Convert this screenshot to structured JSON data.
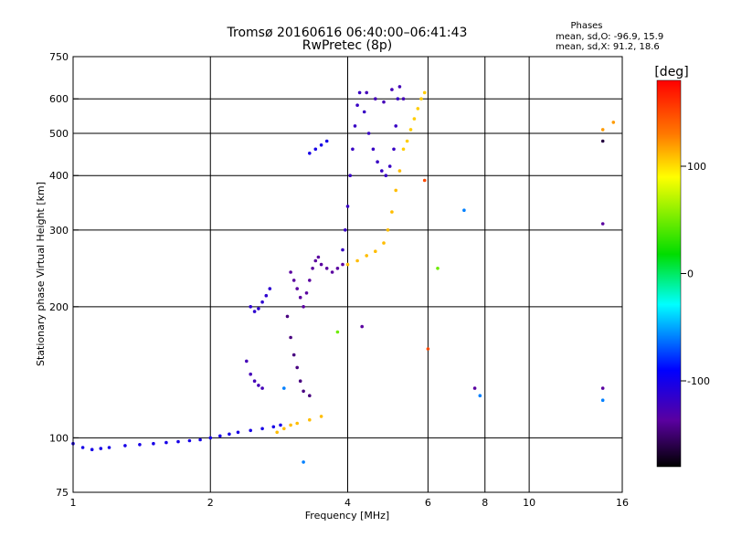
{
  "chart_data": {
    "type": "scatter",
    "title": "Tromsø 20160616 06:40:00–06:41:43",
    "subtitle": "RwPretec (8p)",
    "stats": {
      "heading": "Phases",
      "line_o": "mean, sd,O: -96.9, 15.9",
      "line_x": "mean, sd,X:  91.2, 18.6"
    },
    "xlabel": "Frequency [MHz]",
    "ylabel": "Stationary phase Virtual Height [km]",
    "x_scale": "log",
    "y_scale": "log",
    "xlim": [
      1,
      16
    ],
    "ylim": [
      75,
      750
    ],
    "x_ticks": [
      1,
      2,
      4,
      6,
      8,
      10,
      16
    ],
    "y_ticks": [
      75,
      100,
      200,
      300,
      400,
      500,
      600,
      750
    ],
    "x_grid": [
      2,
      4,
      6,
      8,
      10
    ],
    "y_grid": [
      100,
      200,
      300,
      400,
      500,
      600
    ],
    "colorbar": {
      "label": "[deg]",
      "range": [
        -180,
        180
      ],
      "ticks": [
        100,
        0,
        -100
      ]
    },
    "series": [
      {
        "phase": -100,
        "points": [
          [
            1.0,
            97
          ],
          [
            1.05,
            95
          ],
          [
            1.1,
            94
          ],
          [
            1.15,
            94.5
          ],
          [
            1.2,
            95
          ],
          [
            1.3,
            96
          ],
          [
            1.4,
            96.5
          ],
          [
            1.5,
            97
          ],
          [
            1.6,
            97.5
          ],
          [
            1.7,
            98
          ],
          [
            1.8,
            98.5
          ],
          [
            1.9,
            99
          ],
          [
            2.0,
            100
          ],
          [
            2.1,
            101
          ],
          [
            2.2,
            102
          ],
          [
            2.3,
            103
          ],
          [
            2.45,
            104
          ],
          [
            2.6,
            105
          ],
          [
            2.75,
            106
          ],
          [
            2.85,
            107
          ]
        ]
      },
      {
        "phase": -110,
        "points": [
          [
            2.45,
            200
          ],
          [
            2.5,
            195
          ],
          [
            2.55,
            198
          ],
          [
            2.6,
            205
          ],
          [
            2.65,
            212
          ],
          [
            2.7,
            220
          ]
        ]
      },
      {
        "phase": -120,
        "points": [
          [
            2.4,
            150
          ],
          [
            2.45,
            140
          ],
          [
            2.5,
            135
          ],
          [
            2.55,
            132
          ],
          [
            2.6,
            130
          ]
        ]
      },
      {
        "phase": -140,
        "points": [
          [
            2.95,
            190
          ],
          [
            3.0,
            170
          ],
          [
            3.05,
            155
          ],
          [
            3.1,
            145
          ],
          [
            3.15,
            135
          ],
          [
            3.2,
            128
          ],
          [
            3.3,
            125
          ]
        ]
      },
      {
        "phase": -130,
        "points": [
          [
            3.0,
            240
          ],
          [
            3.05,
            230
          ],
          [
            3.1,
            220
          ],
          [
            3.15,
            210
          ],
          [
            3.2,
            200
          ],
          [
            3.25,
            215
          ],
          [
            3.3,
            230
          ],
          [
            3.35,
            245
          ],
          [
            3.4,
            255
          ],
          [
            3.45,
            260
          ],
          [
            3.5,
            250
          ],
          [
            3.6,
            245
          ],
          [
            3.7,
            240
          ],
          [
            3.8,
            245
          ],
          [
            3.9,
            250
          ]
        ]
      },
      {
        "phase": -115,
        "points": [
          [
            3.9,
            270
          ],
          [
            3.95,
            300
          ],
          [
            4.0,
            340
          ],
          [
            4.05,
            400
          ],
          [
            4.1,
            460
          ],
          [
            4.15,
            520
          ],
          [
            4.2,
            580
          ],
          [
            4.25,
            620
          ],
          [
            4.35,
            560
          ],
          [
            4.45,
            500
          ],
          [
            4.55,
            460
          ],
          [
            4.65,
            430
          ],
          [
            4.75,
            410
          ],
          [
            4.85,
            400
          ],
          [
            4.95,
            420
          ],
          [
            5.05,
            460
          ],
          [
            5.1,
            520
          ],
          [
            5.15,
            600
          ]
        ]
      },
      {
        "phase": -120,
        "points": [
          [
            4.4,
            620
          ],
          [
            4.6,
            600
          ],
          [
            4.8,
            590
          ],
          [
            5.0,
            630
          ],
          [
            5.2,
            640
          ],
          [
            5.3,
            600
          ]
        ]
      },
      {
        "phase": -100,
        "points": [
          [
            3.3,
            450
          ],
          [
            3.4,
            460
          ],
          [
            3.5,
            470
          ],
          [
            3.6,
            480
          ]
        ]
      },
      {
        "phase": 110,
        "points": [
          [
            4.0,
            250
          ],
          [
            4.2,
            255
          ],
          [
            4.4,
            262
          ],
          [
            4.6,
            268
          ],
          [
            4.8,
            280
          ],
          [
            4.9,
            300
          ],
          [
            5.0,
            330
          ],
          [
            5.1,
            370
          ],
          [
            5.2,
            410
          ]
        ]
      },
      {
        "phase": 105,
        "points": [
          [
            5.3,
            460
          ],
          [
            5.4,
            480
          ],
          [
            5.5,
            510
          ],
          [
            5.6,
            540
          ],
          [
            5.7,
            570
          ],
          [
            5.8,
            600
          ],
          [
            5.9,
            620
          ]
        ]
      },
      {
        "phase": 110,
        "points": [
          [
            2.8,
            103
          ],
          [
            2.9,
            105
          ],
          [
            3.0,
            107
          ],
          [
            3.1,
            108
          ],
          [
            3.3,
            110
          ],
          [
            3.5,
            112
          ]
        ]
      },
      {
        "phase": 50,
        "points": [
          [
            3.8,
            175
          ],
          [
            6.3,
            245
          ]
        ]
      },
      {
        "phase": -60,
        "points": [
          [
            2.9,
            130
          ],
          [
            3.2,
            88
          ],
          [
            7.2,
            333
          ],
          [
            7.8,
            125
          ],
          [
            14.5,
            122
          ]
        ]
      },
      {
        "phase": 150,
        "points": [
          [
            5.9,
            390
          ],
          [
            6.0,
            160
          ]
        ]
      },
      {
        "phase": -130,
        "points": [
          [
            4.3,
            180
          ],
          [
            14.5,
            310
          ],
          [
            7.6,
            130
          ],
          [
            14.5,
            130
          ]
        ]
      },
      {
        "phase": 120,
        "points": [
          [
            14.5,
            510
          ],
          [
            15.3,
            530
          ]
        ]
      },
      {
        "phase": -160,
        "points": [
          [
            14.5,
            480
          ]
        ]
      }
    ]
  }
}
